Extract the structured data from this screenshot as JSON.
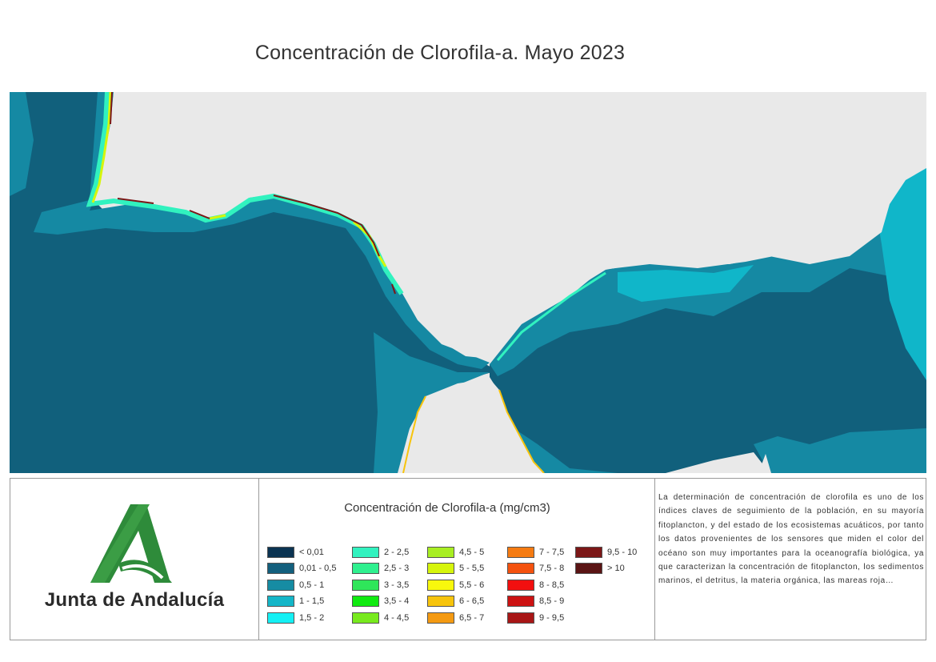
{
  "title": "Concentración de Clorofila-a. Mayo 2023",
  "logo": {
    "text": "Junta de Andalucía",
    "icon": "junta-de-andalucia-logo-icon",
    "color": "#2e8b3a"
  },
  "colors": {
    "land": "#e9e9e9",
    "open_sea": "#11607c",
    "shelf_sea": "#138ca6",
    "coastal": "#10b6c9"
  },
  "legend": {
    "title": "Concentración de Clorofila-a (mg/cm3)",
    "items": [
      {
        "label": "< 0,01",
        "color": "#0b3452"
      },
      {
        "label": "0,01 - 0,5",
        "color": "#135f7d"
      },
      {
        "label": "0,5 - 1",
        "color": "#168ca3"
      },
      {
        "label": "1 - 1,5",
        "color": "#14b6c8"
      },
      {
        "label": "1,5 - 2",
        "color": "#14f0f4"
      },
      {
        "label": "2 - 2,5",
        "color": "#31f2bf"
      },
      {
        "label": "2,5 - 3",
        "color": "#2ff08f"
      },
      {
        "label": "3 - 3,5",
        "color": "#2fe65a"
      },
      {
        "label": "3,5 - 4",
        "color": "#10ea10"
      },
      {
        "label": "4 - 4,5",
        "color": "#78ea1e"
      },
      {
        "label": "4,5 - 5",
        "color": "#a8ee22"
      },
      {
        "label": "5 - 5,5",
        "color": "#d6f50c"
      },
      {
        "label": "5,5 - 6",
        "color": "#f8f80d"
      },
      {
        "label": "6 - 6,5",
        "color": "#f7c40c"
      },
      {
        "label": "6,5 - 7",
        "color": "#f49a12"
      },
      {
        "label": "7 - 7,5",
        "color": "#f57b12"
      },
      {
        "label": "7,5 - 8",
        "color": "#f4520f"
      },
      {
        "label": "8 - 8,5",
        "color": "#f20f0f"
      },
      {
        "label": "8,5 - 9",
        "color": "#cc1212"
      },
      {
        "label": "9 - 9,5",
        "color": "#a81616"
      },
      {
        "label": "9,5 - 10",
        "color": "#7c1717"
      },
      {
        "label": "> 10",
        "color": "#5a1414"
      }
    ]
  },
  "description": "La determinación de concentración de clorofila es uno de los índices claves de seguimiento de la población, en su mayoría fitoplancton, y del estado de los ecosistemas acuáticos, por tanto los datos provenientes de los sensores que miden el color del océano son muy importantes para la oceanografía biológica, ya que caracterizan la concentración de fitoplancton, los sedimentos marinos, el detritus, la materia orgánica, las mareas roja…"
}
